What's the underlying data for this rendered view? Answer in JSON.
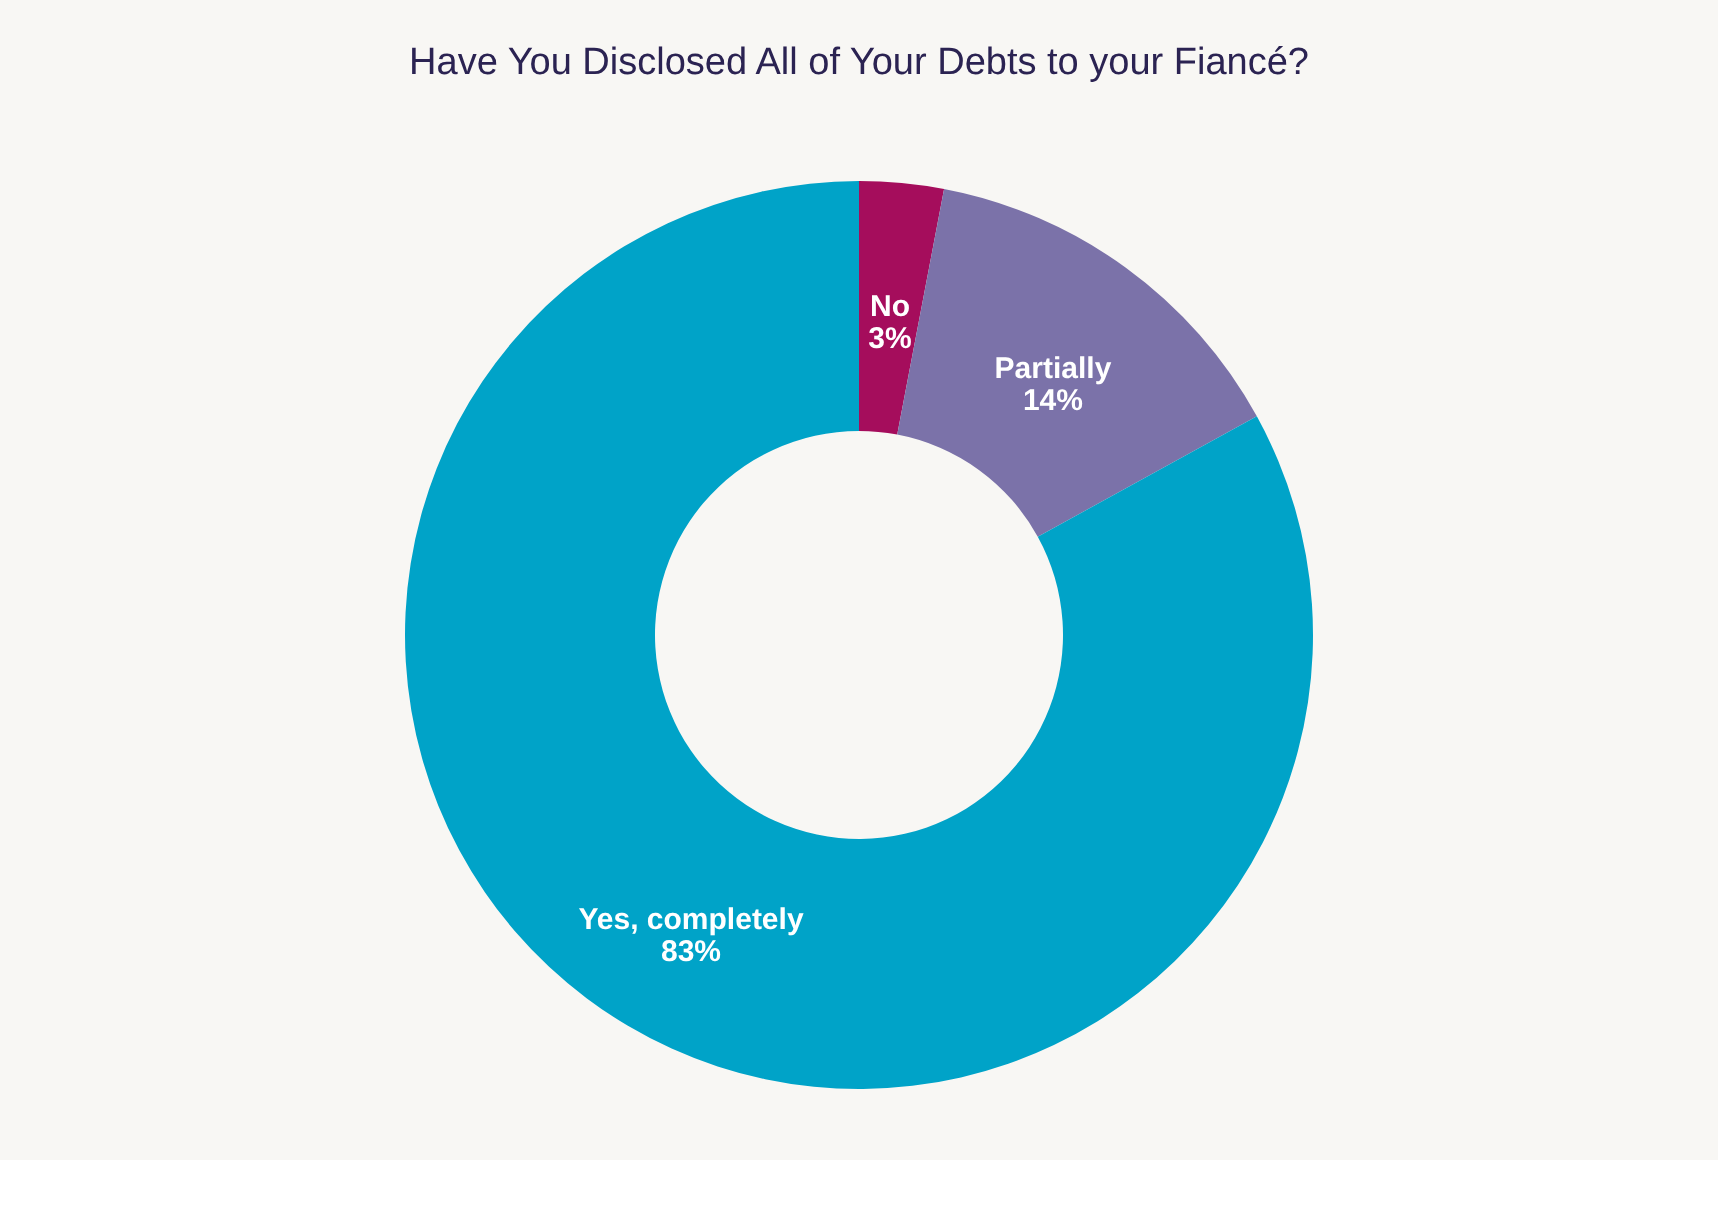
{
  "chart_data": {
    "type": "donut",
    "title": "Have You Disclosed All of Your Debts to your Fiancé?",
    "categories": [
      "No",
      "Partially",
      "Yes, completely"
    ],
    "values": [
      3,
      14,
      83
    ],
    "value_labels": [
      "3%",
      "14%",
      "83%"
    ],
    "colors": [
      "#a50d5c",
      "#7b72a9",
      "#00a3c8"
    ],
    "legend": false
  }
}
